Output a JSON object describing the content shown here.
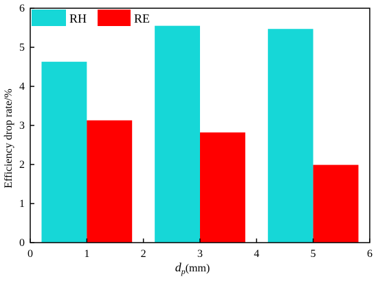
{
  "chart_data": {
    "type": "bar",
    "x": [
      1,
      3,
      5
    ],
    "series": [
      {
        "name": "RH",
        "color": "#16d7d7",
        "values": [
          4.63,
          5.55,
          5.47
        ]
      },
      {
        "name": "RE",
        "color": "#ff0000",
        "values": [
          3.13,
          2.82,
          1.99
        ]
      }
    ],
    "xlabel": {
      "main": "d",
      "sub": "p",
      "unit": "(mm)"
    },
    "ylabel": "Efficiency drop rate/%",
    "xlim": [
      0,
      6
    ],
    "ylim": [
      0,
      6
    ],
    "xticks": [
      0,
      1,
      2,
      3,
      4,
      5,
      6
    ],
    "yticks": [
      0,
      1,
      2,
      3,
      4,
      5,
      6
    ],
    "bar_width": 0.8,
    "grid": false,
    "legend": "top-left"
  }
}
